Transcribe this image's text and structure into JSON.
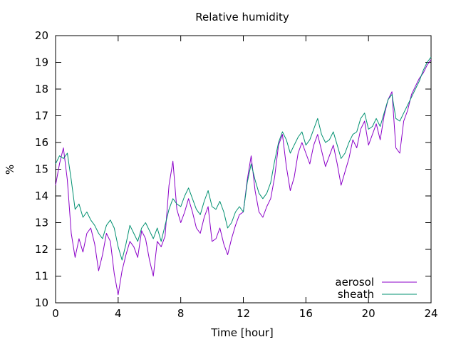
{
  "chart_data": {
    "type": "line",
    "title": "Relative humidity",
    "xlabel": "Time [hour]",
    "ylabel": "%",
    "xlim": [
      0,
      24
    ],
    "ylim": [
      10,
      20
    ],
    "x_ticks": [
      0,
      4,
      8,
      12,
      16,
      20,
      24
    ],
    "y_ticks": [
      10,
      11,
      12,
      13,
      14,
      15,
      16,
      17,
      18,
      19,
      20
    ],
    "grid": false,
    "legend_position": "bottom-right",
    "series": [
      {
        "name": "aerosol",
        "color": "#8b00c8",
        "x": [
          0,
          0.25,
          0.5,
          0.75,
          1,
          1.25,
          1.5,
          1.75,
          2,
          2.25,
          2.5,
          2.75,
          3,
          3.25,
          3.5,
          3.75,
          4,
          4.25,
          4.5,
          4.75,
          5,
          5.25,
          5.5,
          5.75,
          6,
          6.25,
          6.5,
          6.75,
          7,
          7.25,
          7.5,
          7.75,
          8,
          8.25,
          8.5,
          8.75,
          9,
          9.25,
          9.5,
          9.75,
          10,
          10.25,
          10.5,
          10.75,
          11,
          11.25,
          11.5,
          11.75,
          12,
          12.25,
          12.5,
          12.75,
          13,
          13.25,
          13.5,
          13.75,
          14,
          14.25,
          14.5,
          14.75,
          15,
          15.25,
          15.5,
          15.75,
          16,
          16.25,
          16.5,
          16.75,
          17,
          17.25,
          17.5,
          17.75,
          18,
          18.25,
          18.5,
          18.75,
          19,
          19.25,
          19.5,
          19.75,
          20,
          20.25,
          20.5,
          20.75,
          21,
          21.25,
          21.5,
          21.75,
          22,
          22.25,
          22.5,
          22.75,
          23,
          23.25,
          23.5,
          23.75,
          24
        ],
        "y": [
          14.4,
          15.2,
          15.8,
          14.6,
          12.6,
          11.7,
          12.4,
          11.9,
          12.6,
          12.8,
          12.2,
          11.2,
          11.8,
          12.6,
          12.3,
          11.1,
          10.3,
          11.2,
          11.8,
          12.3,
          12.1,
          11.7,
          12.7,
          12.4,
          11.6,
          11.0,
          12.3,
          12.1,
          12.5,
          14.4,
          15.3,
          13.5,
          13.0,
          13.4,
          13.9,
          13.4,
          12.8,
          12.6,
          13.2,
          13.6,
          12.3,
          12.4,
          12.8,
          12.2,
          11.8,
          12.4,
          12.9,
          13.3,
          13.4,
          14.6,
          15.5,
          14.2,
          13.4,
          13.2,
          13.6,
          13.9,
          14.7,
          15.9,
          16.3,
          15.1,
          14.2,
          14.7,
          15.6,
          16.0,
          15.6,
          15.2,
          15.9,
          16.3,
          15.7,
          15.1,
          15.5,
          15.9,
          15.2,
          14.4,
          14.9,
          15.4,
          16.1,
          15.8,
          16.5,
          16.8,
          15.9,
          16.3,
          16.7,
          16.1,
          17.0,
          17.6,
          17.9,
          15.8,
          15.6,
          16.8,
          17.2,
          17.8,
          18.1,
          18.4,
          18.6,
          18.9,
          19.1
        ]
      },
      {
        "name": "sheath",
        "color": "#009070",
        "x": [
          0,
          0.25,
          0.5,
          0.75,
          1,
          1.25,
          1.5,
          1.75,
          2,
          2.25,
          2.5,
          2.75,
          3,
          3.25,
          3.5,
          3.75,
          4,
          4.25,
          4.5,
          4.75,
          5,
          5.25,
          5.5,
          5.75,
          6,
          6.25,
          6.5,
          6.75,
          7,
          7.25,
          7.5,
          7.75,
          8,
          8.25,
          8.5,
          8.75,
          9,
          9.25,
          9.5,
          9.75,
          10,
          10.25,
          10.5,
          10.75,
          11,
          11.25,
          11.5,
          11.75,
          12,
          12.25,
          12.5,
          12.75,
          13,
          13.25,
          13.5,
          13.75,
          14,
          14.25,
          14.5,
          14.75,
          15,
          15.25,
          15.5,
          15.75,
          16,
          16.25,
          16.5,
          16.75,
          17,
          17.25,
          17.5,
          17.75,
          18,
          18.25,
          18.5,
          18.75,
          19,
          19.25,
          19.5,
          19.75,
          20,
          20.25,
          20.5,
          20.75,
          21,
          21.25,
          21.5,
          21.75,
          22,
          22.25,
          22.5,
          22.75,
          23,
          23.25,
          23.5,
          23.75,
          24
        ],
        "y": [
          15.2,
          15.5,
          15.4,
          15.6,
          14.6,
          13.5,
          13.7,
          13.2,
          13.4,
          13.1,
          12.9,
          12.6,
          12.4,
          12.9,
          13.1,
          12.8,
          12.1,
          11.6,
          12.2,
          12.9,
          12.6,
          12.3,
          12.8,
          13.0,
          12.7,
          12.4,
          12.8,
          12.3,
          12.9,
          13.5,
          13.9,
          13.7,
          13.6,
          14.0,
          14.3,
          13.9,
          13.5,
          13.3,
          13.8,
          14.2,
          13.6,
          13.5,
          13.8,
          13.4,
          12.8,
          13.0,
          13.4,
          13.6,
          13.4,
          14.5,
          15.2,
          14.6,
          14.1,
          13.9,
          14.1,
          14.5,
          15.3,
          16.0,
          16.4,
          16.1,
          15.6,
          15.9,
          16.2,
          16.4,
          15.9,
          16.1,
          16.5,
          16.9,
          16.3,
          16.0,
          16.1,
          16.4,
          15.9,
          15.4,
          15.6,
          16.0,
          16.3,
          16.4,
          16.9,
          17.1,
          16.5,
          16.6,
          16.9,
          16.6,
          17.1,
          17.6,
          17.8,
          16.9,
          16.8,
          17.1,
          17.4,
          17.7,
          18.0,
          18.3,
          18.7,
          19.0,
          19.2
        ]
      }
    ]
  }
}
